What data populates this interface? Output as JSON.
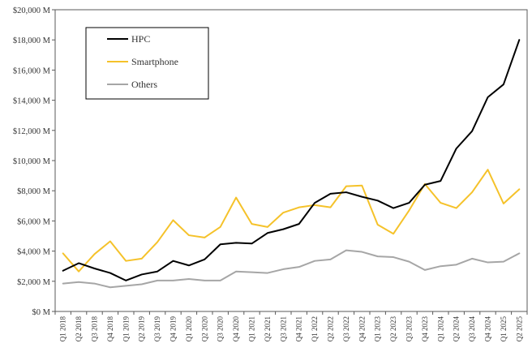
{
  "chart_data": {
    "type": "line",
    "title": "",
    "xlabel": "",
    "ylabel": "",
    "ylim": [
      0,
      20000
    ],
    "ytick_values": [
      0,
      2000,
      4000,
      6000,
      8000,
      10000,
      12000,
      14000,
      16000,
      18000,
      20000
    ],
    "ytick_labels": [
      "$0 M",
      "$2,000 M",
      "$4,000 M",
      "$6,000 M",
      "$8,000 M",
      "$10,000 M",
      "$12,000 M",
      "$14,000 M",
      "$16,000 M",
      "$18,000 M",
      "$20,000 M"
    ],
    "grid": false,
    "legend_position": "top-left",
    "categories": [
      "Q1 2018",
      "Q2 2018",
      "Q3 2018",
      "Q4 2018",
      "Q1 2019",
      "Q2 2019",
      "Q3 2019",
      "Q4 2019",
      "Q1 2020",
      "Q2 2020",
      "Q3 2020",
      "Q4 2020",
      "Q1 2021",
      "Q2 2021",
      "Q3 2021",
      "Q4 2021",
      "Q1 2022",
      "Q2 2022",
      "Q3 2022",
      "Q4 2022",
      "Q1 2023",
      "Q2 2023",
      "Q3 2023",
      "Q4 2023",
      "Q1 2024",
      "Q2 2024",
      "Q3 2024",
      "Q4 2024",
      "Q1 2025",
      "Q2 2025"
    ],
    "series": [
      {
        "name": "HPC",
        "color": "#000000",
        "values": [
          2700,
          3200,
          2850,
          2550,
          2050,
          2450,
          2650,
          3350,
          3050,
          3450,
          4450,
          4550,
          4500,
          5200,
          5450,
          5800,
          7200,
          7800,
          7900,
          7600,
          7350,
          6850,
          7200,
          8400,
          8650,
          10800,
          11950,
          14200,
          15050,
          18000
        ]
      },
      {
        "name": "Smartphone",
        "color": "#f5c22a",
        "values": [
          3850,
          2650,
          3800,
          4650,
          3350,
          3500,
          4600,
          6050,
          5050,
          4900,
          5600,
          7550,
          5800,
          5600,
          6550,
          6900,
          7050,
          6900,
          8300,
          8350,
          5750,
          5150,
          6700,
          8450,
          7200,
          6850,
          7900,
          9400,
          7150,
          8100
        ]
      },
      {
        "name": "Others",
        "color": "#a6a6a6",
        "values": [
          1850,
          1950,
          1850,
          1600,
          1700,
          1800,
          2050,
          2050,
          2150,
          2050,
          2050,
          2650,
          2600,
          2550,
          2800,
          2950,
          3350,
          3450,
          4050,
          3950,
          3650,
          3600,
          3300,
          2750,
          3000,
          3100,
          3500,
          3250,
          3300,
          3850
        ]
      }
    ]
  }
}
